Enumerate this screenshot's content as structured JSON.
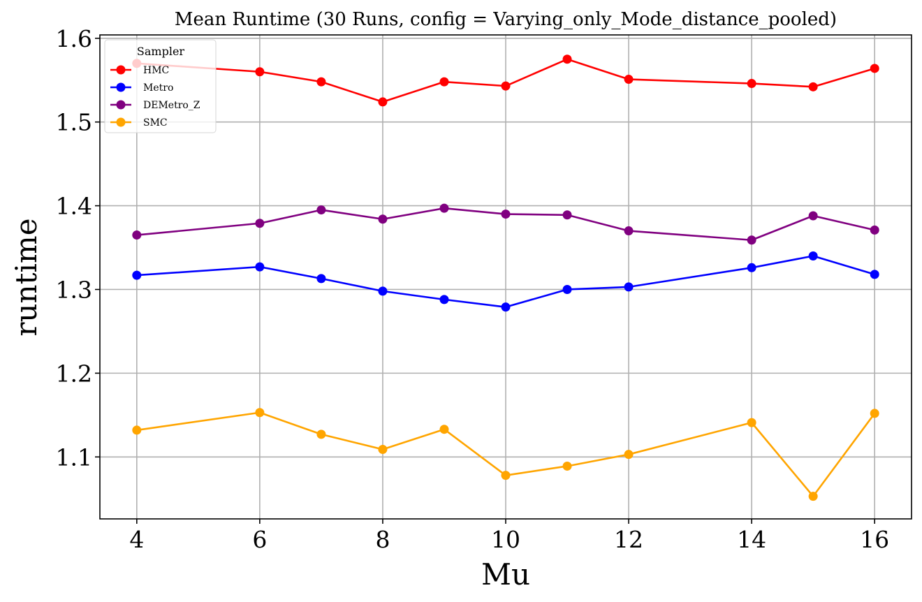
{
  "chart_data": {
    "type": "line",
    "title": "Mean Runtime (30 Runs, config = Varying_only_Mode_distance_pooled)",
    "xlabel": "Mu",
    "ylabel": "runtime",
    "x": [
      4,
      6,
      7,
      8,
      9,
      10,
      11,
      12,
      14,
      15,
      16
    ],
    "xlim": [
      3.4,
      16.6
    ],
    "ylim": [
      1.026,
      1.604
    ],
    "xticks": [
      "4",
      "6",
      "8",
      "10",
      "12",
      "14",
      "16"
    ],
    "yticks": [
      "1.1",
      "1.2",
      "1.3",
      "1.4",
      "1.5",
      "1.6"
    ],
    "grid": true,
    "legend_title": "Sampler",
    "legend_position": "top-left",
    "series": [
      {
        "name": "HMC",
        "color": "#ff0000",
        "values": [
          1.57,
          1.56,
          1.548,
          1.524,
          1.548,
          1.543,
          1.575,
          1.551,
          1.546,
          1.542,
          1.564
        ]
      },
      {
        "name": "Metro",
        "color": "#0000ff",
        "values": [
          1.317,
          1.327,
          1.313,
          1.298,
          1.288,
          1.279,
          1.3,
          1.303,
          1.326,
          1.34,
          1.318
        ]
      },
      {
        "name": "DEMetro_Z",
        "color": "#800080",
        "values": [
          1.365,
          1.379,
          1.395,
          1.384,
          1.397,
          1.39,
          1.389,
          1.37,
          1.359,
          1.388,
          1.371
        ]
      },
      {
        "name": "SMC",
        "color": "#ffa500",
        "values": [
          1.132,
          1.153,
          1.127,
          1.109,
          1.133,
          1.078,
          1.089,
          1.103,
          1.141,
          1.053,
          1.152
        ]
      }
    ]
  }
}
